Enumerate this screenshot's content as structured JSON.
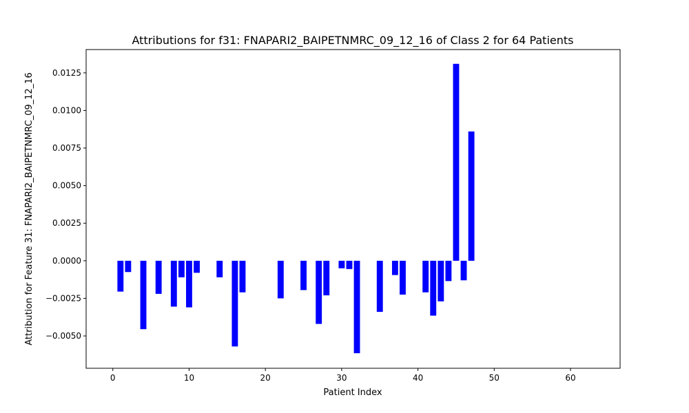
{
  "chart_data": {
    "type": "bar",
    "title": "Attributions for f31: FNAPARI2_BAIPETNMRC_09_12_16 of Class 2 for 64 Patients",
    "xlabel": "Patient Index",
    "ylabel": "Attribution for Feature 31: FNAPARI2_BAIPETNMRC_09_12_16",
    "xlim": [
      -3.5,
      66.5
    ],
    "ylim": [
      -0.00715,
      0.01405
    ],
    "x_ticks": [
      0,
      10,
      20,
      30,
      40,
      50,
      60
    ],
    "x_tick_labels": [
      "0",
      "10",
      "20",
      "30",
      "40",
      "50",
      "60"
    ],
    "y_ticks": [
      -0.005,
      -0.0025,
      0.0,
      0.0025,
      0.005,
      0.0075,
      0.01,
      0.0125
    ],
    "y_tick_labels": [
      "−0.0050",
      "−0.0025",
      "0.0000",
      "0.0025",
      "0.0050",
      "0.0075",
      "0.0100",
      "0.0125"
    ],
    "bar_color": "#0000ff",
    "bar_width": 0.8,
    "grid": false,
    "legend": "none",
    "x": [
      1,
      2,
      4,
      6,
      8,
      9,
      10,
      11,
      14,
      16,
      17,
      22,
      25,
      27,
      28,
      30,
      31,
      32,
      35,
      37,
      38,
      41,
      42,
      43,
      44,
      45,
      46,
      47
    ],
    "values": [
      -0.00205,
      -0.00075,
      -0.00455,
      -0.0022,
      -0.00305,
      -0.0011,
      -0.0031,
      -0.0008,
      -0.0011,
      -0.0057,
      -0.0021,
      -0.0025,
      -0.00195,
      -0.0042,
      -0.0023,
      -0.0005,
      -0.00055,
      -0.00615,
      -0.0034,
      -0.00095,
      -0.00225,
      -0.0021,
      -0.00365,
      -0.0027,
      -0.00135,
      0.0131,
      -0.0013,
      0.0086
    ]
  }
}
